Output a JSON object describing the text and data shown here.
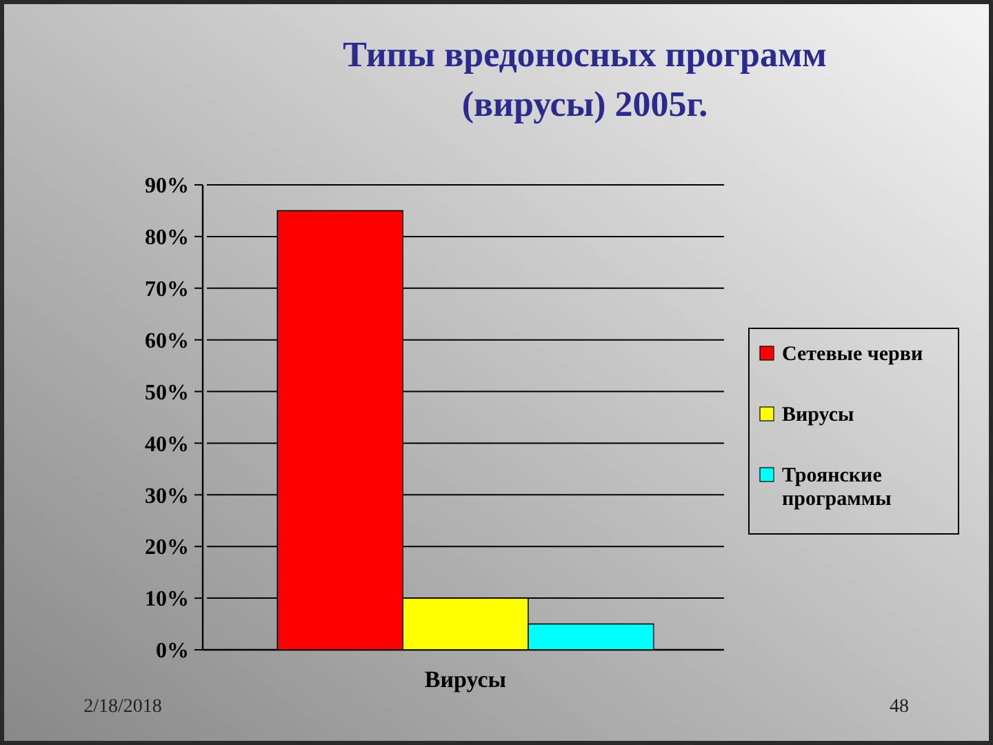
{
  "chart_data": {
    "type": "bar",
    "title": "Типы вредоносных программ (вирусы) 2005г.",
    "categories": [
      "Вирусы"
    ],
    "series": [
      {
        "name": "Сетевые черви",
        "color": "#ff0000",
        "values": [
          85
        ]
      },
      {
        "name": "Вирусы",
        "color": "#ffff00",
        "values": [
          10
        ]
      },
      {
        "name": "Троянские программы",
        "color": "#00ffff",
        "values": [
          5
        ]
      }
    ],
    "ylim": [
      0,
      90
    ],
    "yticks": [
      {
        "value": 0,
        "label": "0%"
      },
      {
        "value": 10,
        "label": "10%"
      },
      {
        "value": 20,
        "label": "20%"
      },
      {
        "value": 30,
        "label": "30%"
      },
      {
        "value": 40,
        "label": "40%"
      },
      {
        "value": 50,
        "label": "50%"
      },
      {
        "value": 60,
        "label": "60%"
      },
      {
        "value": 70,
        "label": "70%"
      },
      {
        "value": 80,
        "label": "80%"
      },
      {
        "value": 90,
        "label": "90%"
      }
    ],
    "grid": "y",
    "legend": "right",
    "annotations": [
      "2/18/2018",
      "48"
    ]
  }
}
